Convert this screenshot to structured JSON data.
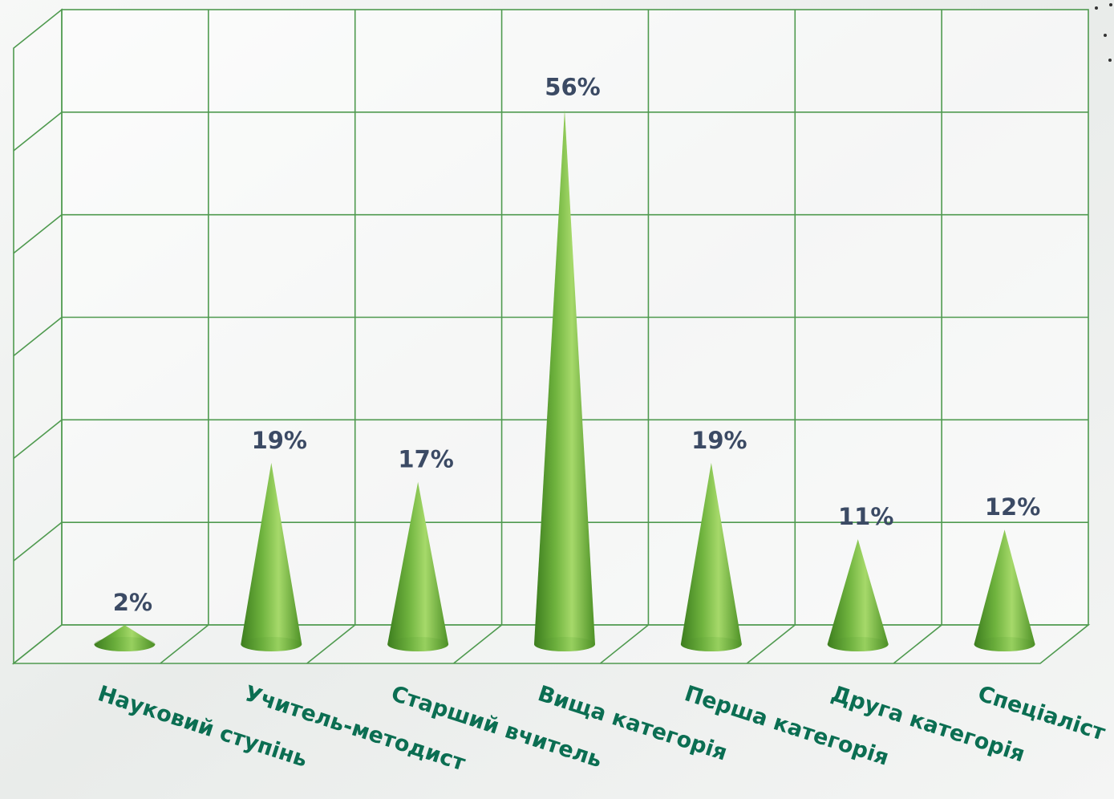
{
  "chart_data": {
    "type": "bar",
    "style": "3d-cone",
    "categories": [
      "Науковий ступінь",
      "Учитель-методист",
      "Старший вчитель",
      "Вища  категорія",
      "Перша категорія",
      "Друга категорія",
      "Спеціаліст"
    ],
    "values": [
      2,
      19,
      17,
      56,
      19,
      11,
      12
    ],
    "data_labels": [
      "2%",
      "19%",
      "17%",
      "56%",
      "19%",
      "11%",
      "12%"
    ],
    "unit": "%",
    "ylim": [
      0,
      60
    ],
    "grid": true,
    "legend": "none",
    "colors": {
      "cone_light": "#a6d96a",
      "cone_mid": "#6fb33e",
      "cone_dark": "#3c7d1e",
      "grid": "#4f9a4f",
      "value_label": "#3b4a64",
      "category_label": "#0b6e52",
      "background": "#eef1ee"
    }
  }
}
